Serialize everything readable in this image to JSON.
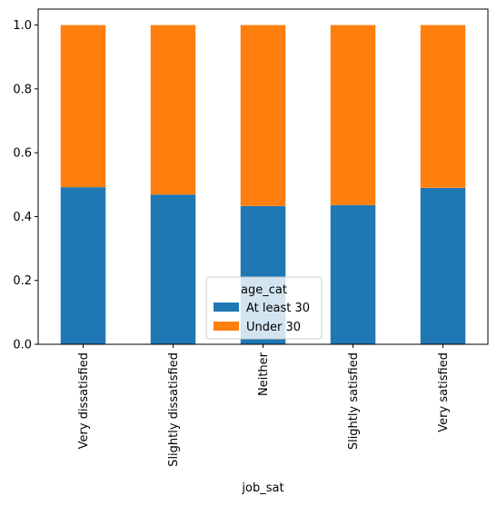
{
  "chart_data": {
    "type": "bar",
    "stacked": true,
    "title": "",
    "xlabel": "job_sat",
    "ylabel": "",
    "categories": [
      "Very dissatisfied",
      "Slightly dissatisfied",
      "Neither",
      "Slightly satisfied",
      "Very satisfied"
    ],
    "series": [
      {
        "name": "At least 30",
        "color": "#1f77b4",
        "values": [
          0.492,
          0.469,
          0.433,
          0.436,
          0.49
        ]
      },
      {
        "name": "Under 30",
        "color": "#ff7f0e",
        "values": [
          0.508,
          0.531,
          0.567,
          0.564,
          0.51
        ]
      }
    ],
    "ylim": [
      0,
      1.05
    ],
    "yticks": [
      0.0,
      0.2,
      0.4,
      0.6,
      0.8,
      1.0
    ],
    "ytick_labels": [
      "0.0",
      "0.2",
      "0.4",
      "0.6",
      "0.8",
      "1.0"
    ],
    "grid": false,
    "legend": {
      "title": "age_cat",
      "placement": "bottom-center"
    }
  }
}
